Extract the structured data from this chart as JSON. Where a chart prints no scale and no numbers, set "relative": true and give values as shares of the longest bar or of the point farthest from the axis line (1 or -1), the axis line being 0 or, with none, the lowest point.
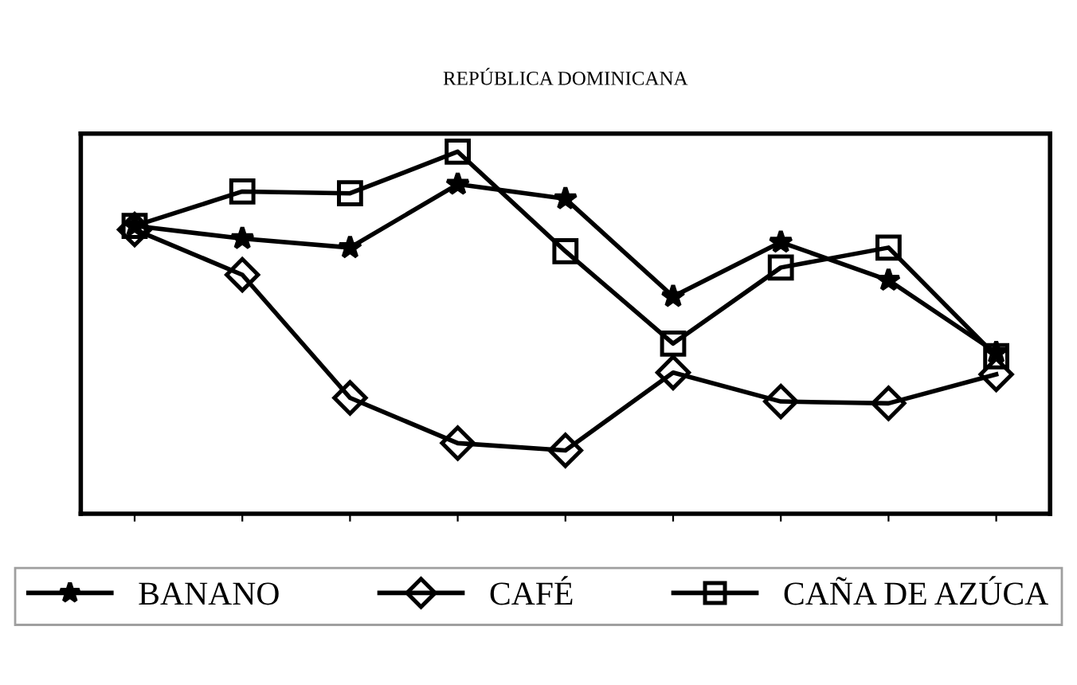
{
  "chart_data": {
    "type": "line",
    "title": "REPÚBLICA DOMINICANA",
    "relative": true,
    "legend": "bottom",
    "line_style": "solid",
    "categories": [
      null,
      null,
      null,
      null,
      null,
      null,
      null,
      null,
      null
    ],
    "series": [
      {
        "name": "BANANO",
        "color": "#000000",
        "marker": "star",
        "values": [
          0.795,
          0.76,
          0.735,
          0.91,
          0.87,
          0.6,
          0.75,
          0.645,
          0.445
        ]
      },
      {
        "name": "CAFÉ",
        "color": "#000000",
        "marker": "diamond",
        "values": [
          0.785,
          0.66,
          0.32,
          0.195,
          0.175,
          0.39,
          0.31,
          0.305,
          0.385
        ]
      },
      {
        "name": "CAÑA DE AZÚCA",
        "color": "#000000",
        "marker": "square",
        "values": [
          0.795,
          0.89,
          0.885,
          1,
          0.725,
          0.47,
          0.68,
          0.735,
          0.435
        ]
      }
    ]
  }
}
